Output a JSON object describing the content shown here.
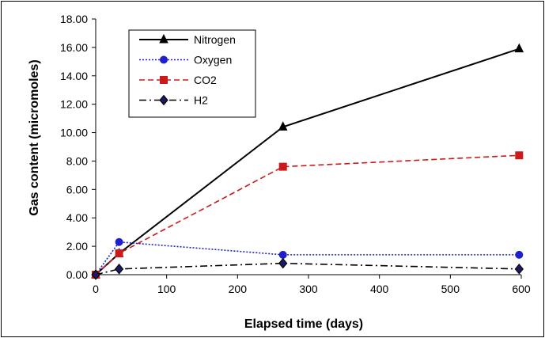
{
  "chart_data": {
    "type": "line",
    "xlabel": "Elapsed time (days)",
    "ylabel": "Gas content (micromoles)",
    "xlim": [
      0,
      600
    ],
    "ylim": [
      0,
      18
    ],
    "x_ticks": [
      "0",
      "100",
      "200",
      "300",
      "400",
      "500",
      "600"
    ],
    "y_ticks": [
      "0.00",
      "2.00",
      "4.00",
      "6.00",
      "8.00",
      "10.00",
      "12.00",
      "14.00",
      "16.00",
      "18.00"
    ],
    "grid": false,
    "legend_position": "top-left",
    "series": [
      {
        "name": "Nitrogen",
        "color": "#000000",
        "marker": "triangle",
        "dash": "solid",
        "points": [
          [
            0,
            0.0
          ],
          [
            33,
            1.5
          ],
          [
            264,
            10.4
          ],
          [
            597,
            15.9
          ]
        ]
      },
      {
        "name": "Oxygen",
        "color": "#1f1fcc",
        "marker": "circle",
        "dash": "dotted",
        "points": [
          [
            0,
            0.0
          ],
          [
            33,
            2.3
          ],
          [
            264,
            1.4
          ],
          [
            597,
            1.4
          ]
        ]
      },
      {
        "name": "CO2",
        "color": "#cc1a1a",
        "marker": "square",
        "dash": "dashed",
        "points": [
          [
            0,
            0.0
          ],
          [
            33,
            1.5
          ],
          [
            264,
            7.6
          ],
          [
            597,
            8.4
          ]
        ]
      },
      {
        "name": "H2",
        "color": "#000000",
        "marker": "diamond",
        "dash": "dashdot",
        "points": [
          [
            0,
            0.0
          ],
          [
            33,
            0.4
          ],
          [
            264,
            0.8
          ],
          [
            597,
            0.4
          ]
        ]
      }
    ]
  }
}
